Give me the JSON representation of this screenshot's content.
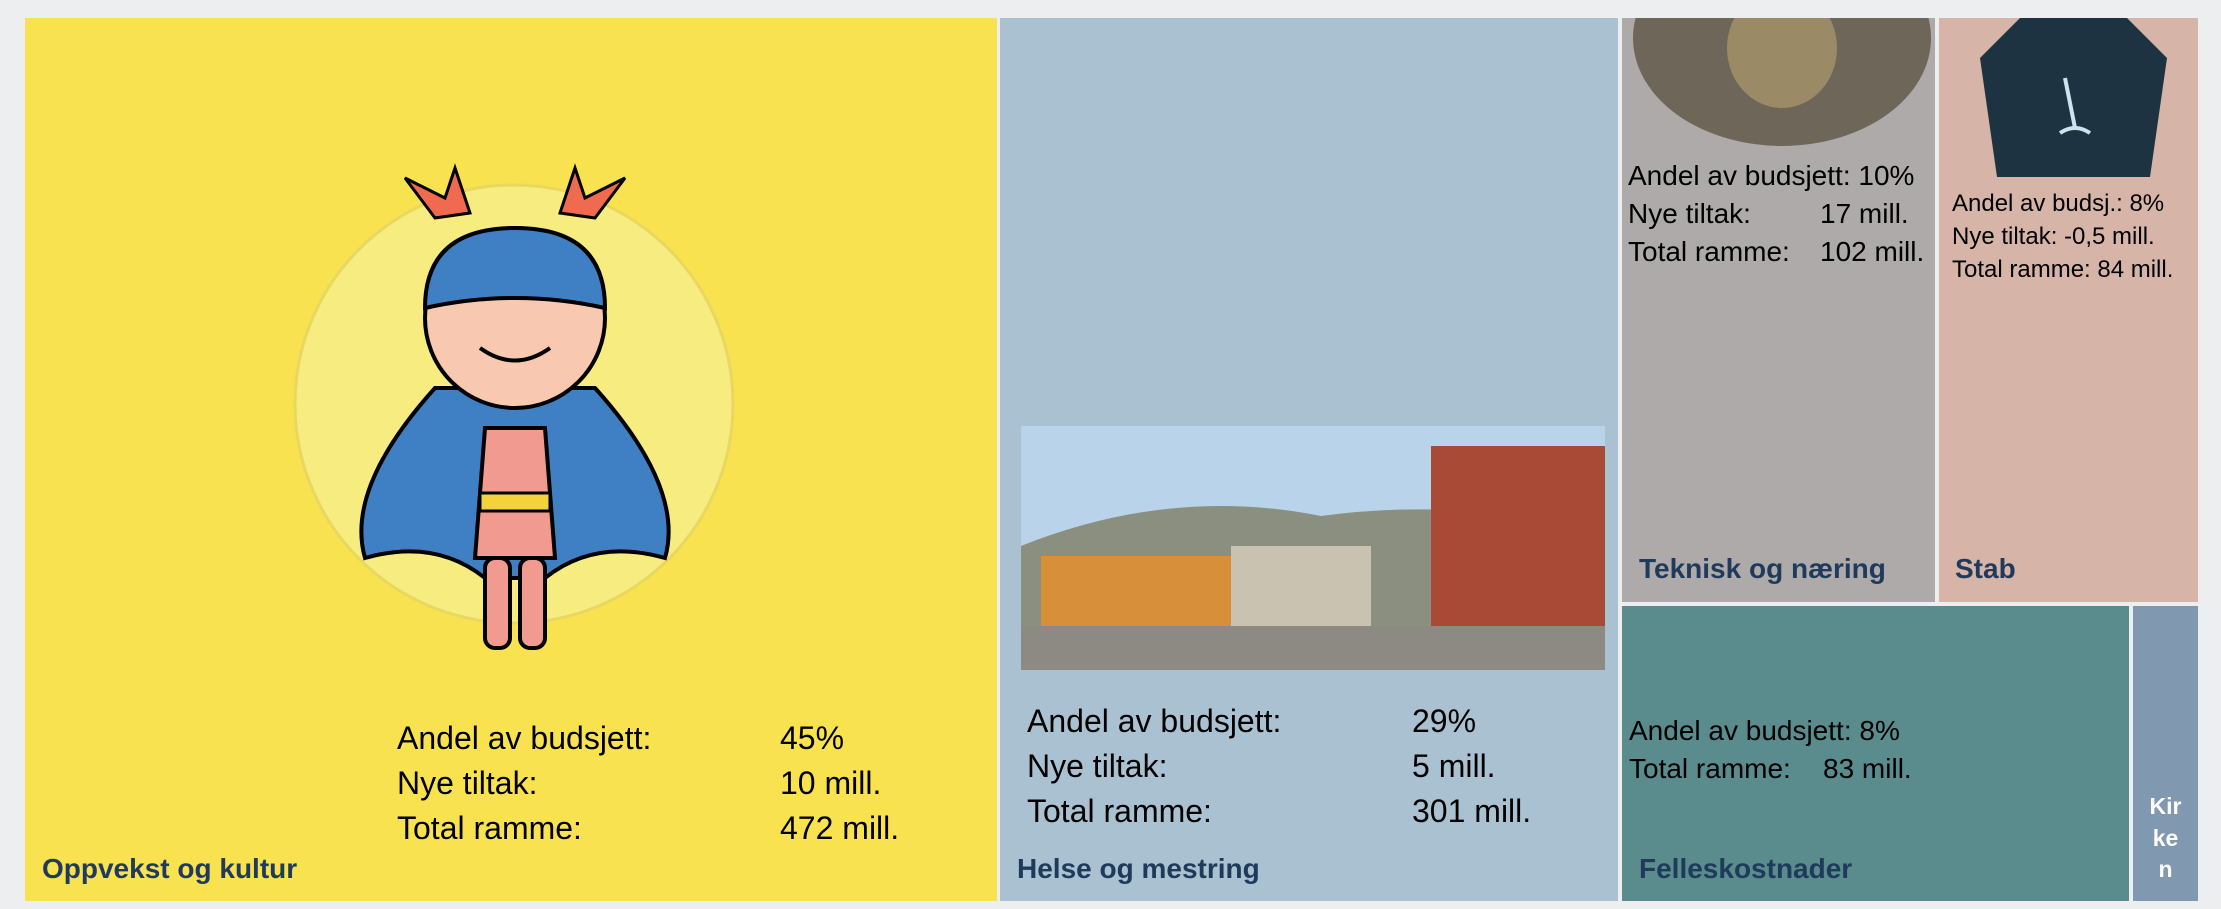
{
  "tiles": [
    {
      "name": "Oppvekst og kultur",
      "lines": [
        {
          "label": "Andel av budsjett:",
          "value": "45%"
        },
        {
          "label": "Nye tiltak:",
          "value": "10 mill."
        },
        {
          "label": "Total ramme:",
          "value": "472 mill."
        }
      ]
    },
    {
      "name": "Helse og mestring",
      "lines": [
        {
          "label": "Andel av budsjett:",
          "value": "29%"
        },
        {
          "label": "Nye tiltak:",
          "value": "5 mill."
        },
        {
          "label": "Total ramme:",
          "value": "301 mill."
        }
      ]
    },
    {
      "name": "Teknisk og næring",
      "lines": [
        {
          "label": "Andel av budsjett: 10%"
        },
        {
          "label": "Nye tiltak:",
          "value": "17 mill."
        },
        {
          "label": "Total ramme:",
          "value": "102 mill."
        }
      ]
    },
    {
      "name": "Stab",
      "lines": [
        {
          "label": "Andel av budsj.: 8%"
        },
        {
          "label": "Nye tiltak: -0,5 mill."
        },
        {
          "label": "Total ramme: 84 mill."
        }
      ]
    },
    {
      "name": "Felleskostnader",
      "lines": [
        {
          "label": "Andel av budsjett: 8%"
        },
        {
          "label": "Total ramme:",
          "value": "83 mill."
        }
      ]
    },
    {
      "name": [
        "Kir",
        "ke",
        "n"
      ]
    }
  ]
}
